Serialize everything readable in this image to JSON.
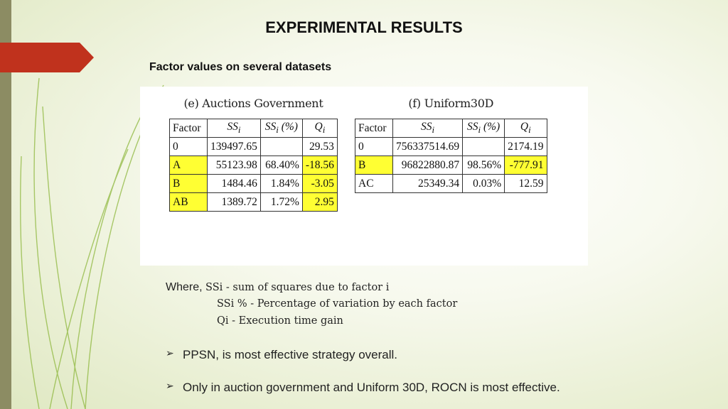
{
  "slide": {
    "title": "EXPERIMENTAL RESULTS",
    "subtitle": "Factor values on several datasets",
    "colors": {
      "accent": "#c0321d",
      "left_bar": "#8c8c63",
      "highlight": "#ffff33",
      "deco_lines": "#8fb83f"
    }
  },
  "tables": [
    {
      "title": "(e) Auctions Government",
      "headers": [
        "Factor",
        "SSi",
        "SSi (%)",
        "Qi"
      ],
      "rows": [
        {
          "factor": "0",
          "ss": "139497.65",
          "pct": "",
          "q": "29.53",
          "highlight": false
        },
        {
          "factor": "A",
          "ss": "55123.98",
          "pct": "68.40%",
          "q": "-18.56",
          "highlight": true
        },
        {
          "factor": "B",
          "ss": "1484.46",
          "pct": "1.84%",
          "q": "-3.05",
          "highlight": true
        },
        {
          "factor": "AB",
          "ss": "1389.72",
          "pct": "1.72%",
          "q": "2.95",
          "highlight": true
        }
      ]
    },
    {
      "title": "(f) Uniform30D",
      "headers": [
        "Factor",
        "SSi",
        "SSi (%)",
        "Qi"
      ],
      "rows": [
        {
          "factor": "0",
          "ss": "756337514.69",
          "pct": "",
          "q": "2174.19",
          "highlight": false
        },
        {
          "factor": "B",
          "ss": "96822880.87",
          "pct": "98.56%",
          "q": "-777.91",
          "highlight": true
        },
        {
          "factor": "AC",
          "ss": "25349.34",
          "pct": "0.03%",
          "q": "12.59",
          "highlight": false
        }
      ]
    }
  ],
  "notes": {
    "where_label": "Where,",
    "line1": "SSi - sum of squares due to factor i",
    "line2": "SSi % - Percentage of variation by each factor",
    "line3": "Qi  - Execution time gain"
  },
  "bullets": [
    "PPSN,  is most effective strategy overall.",
    "Only in auction government and Uniform 30D, ROCN is most effective."
  ]
}
